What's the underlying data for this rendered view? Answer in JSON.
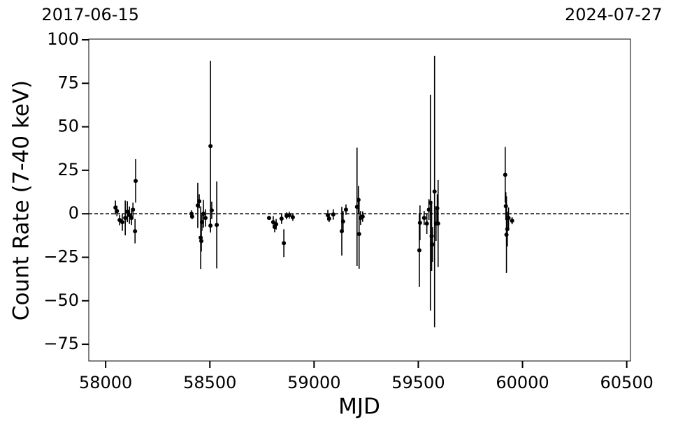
{
  "chart_data": {
    "type": "errorbar",
    "xlabel": "MJD",
    "ylabel": "Count Rate (7-40 keV)",
    "xlim": [
      57919,
      60518
    ],
    "ylim": [
      -84.6,
      100.4
    ],
    "xticks": [
      58000,
      58500,
      59000,
      59500,
      60000,
      60500
    ],
    "yticks": [
      100,
      75,
      50,
      25,
      0,
      {
        "value": -25,
        "label": "−25"
      },
      {
        "value": -50,
        "label": "−50"
      },
      {
        "value": -75,
        "label": "−75"
      }
    ],
    "x2ticks": [
      {
        "value": 57919,
        "label": "2017-06-15"
      },
      {
        "value": 60518,
        "label": "2024-07-27"
      }
    ],
    "hline": 0,
    "series": [
      {
        "color": "#000000",
        "x": [
          58047,
          58054,
          58067,
          58080,
          58094,
          58104,
          58114,
          58124,
          58131,
          58141,
          58144,
          58412,
          58415,
          58442,
          58449,
          58456,
          58459,
          58462,
          58469,
          58479,
          58503,
          58503,
          58509,
          58533,
          58784,
          58804,
          58811,
          58818,
          58844,
          58855,
          58868,
          58881,
          58898,
          59066,
          59072,
          59092,
          59133,
          59139,
          59153,
          59206,
          59213,
          59216,
          59223,
          59233,
          59505,
          59508,
          59528,
          59541,
          59551,
          59558,
          59564,
          59568,
          59578,
          59585,
          59591,
          59595,
          59917,
          59920,
          59923,
          59927,
          59933,
          59950
        ],
        "values": [
          3.6,
          1.6,
          -3.6,
          -4.8,
          -2.4,
          1.2,
          -0.8,
          -2.4,
          2.4,
          -10,
          18.9,
          0,
          -1.6,
          4.8,
          7.2,
          -13.7,
          -15.7,
          -4.8,
          0,
          -2.4,
          38.9,
          -6.8,
          2,
          -6.4,
          -2.4,
          -4.8,
          -7.6,
          -6,
          -2.8,
          -16.9,
          -1.2,
          -0.8,
          -2,
          -0.8,
          -2.8,
          -0.4,
          -10,
          -4.4,
          2.4,
          4,
          8,
          -11.6,
          -2.4,
          -1.6,
          -21,
          -5.2,
          -2.4,
          -5.6,
          2.4,
          6.4,
          -12.8,
          -17.6,
          12.8,
          -5.6,
          3.2,
          -5.6,
          22.4,
          4.4,
          -12,
          -8.8,
          -2.4,
          -4
        ],
        "errors": [
          4,
          3,
          3,
          5,
          10,
          6,
          5,
          4,
          4,
          7,
          12.5,
          2,
          1.5,
          13,
          4,
          18,
          6,
          5,
          8,
          5,
          49,
          4,
          5,
          25,
          1,
          3.5,
          3,
          3,
          3,
          8,
          2,
          2,
          2,
          3,
          2,
          3,
          14,
          6,
          3,
          34,
          8,
          20,
          4,
          3,
          21,
          10,
          4,
          6,
          6,
          62,
          20,
          10,
          78,
          10,
          8,
          25,
          16,
          8,
          22,
          10,
          6,
          2
        ]
      }
    ]
  }
}
